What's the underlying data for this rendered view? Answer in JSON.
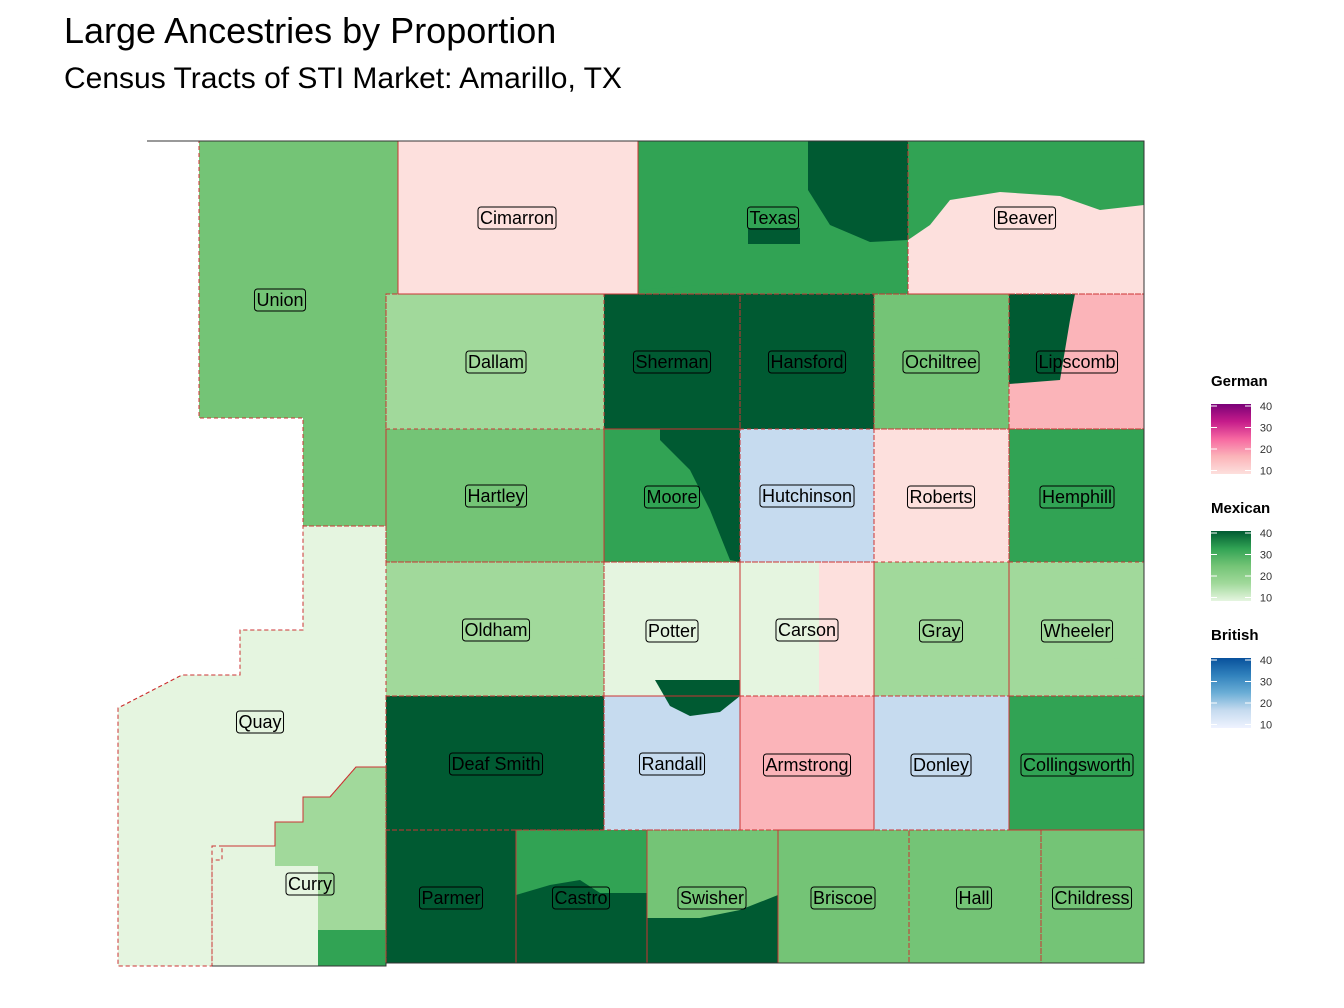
{
  "title": "Large Ancestries by Proportion",
  "subtitle": "Census Tracts of STI Market: Amarillo, TX",
  "colors": {
    "german": [
      "#fde0dd",
      "#fbb4b9",
      "#f768a1",
      "#c51b8a",
      "#7a0177"
    ],
    "mexican": [
      "#e5f5e0",
      "#a1d99b",
      "#74c476",
      "#31a354",
      "#005a32"
    ],
    "british": [
      "#eff3ff",
      "#c6dbef",
      "#6baed6",
      "#3182bd",
      "#08519c"
    ],
    "border": "#cc3333"
  },
  "legend": [
    {
      "name": "German",
      "ticks": [
        "40",
        "30",
        "20",
        "10"
      ]
    },
    {
      "name": "Mexican",
      "ticks": [
        "40",
        "30",
        "20",
        "10"
      ]
    },
    {
      "name": "British",
      "ticks": [
        "40",
        "30",
        "20",
        "10"
      ]
    }
  ],
  "counties": [
    {
      "name": "Union",
      "ancestry": "Mexican",
      "pct": 22
    },
    {
      "name": "Quay",
      "ancestry": "Mexican",
      "pct": 10
    },
    {
      "name": "Curry",
      "ancestry": "Mexican",
      "pct": 10
    },
    {
      "name": "Cimarron",
      "ancestry": "German",
      "pct": 12
    },
    {
      "name": "Texas",
      "ancestry": "Mexican",
      "pct": 30
    },
    {
      "name": "Beaver",
      "ancestry": "German",
      "pct": 12
    },
    {
      "name": "Dallam",
      "ancestry": "Mexican",
      "pct": 14
    },
    {
      "name": "Sherman",
      "ancestry": "Mexican",
      "pct": 40
    },
    {
      "name": "Hansford",
      "ancestry": "Mexican",
      "pct": 40
    },
    {
      "name": "Ochiltree",
      "ancestry": "Mexican",
      "pct": 24
    },
    {
      "name": "Lipscomb",
      "ancestry": "German",
      "pct": 15
    },
    {
      "name": "Hartley",
      "ancestry": "Mexican",
      "pct": 24
    },
    {
      "name": "Moore",
      "ancestry": "Mexican",
      "pct": 30
    },
    {
      "name": "Hutchinson",
      "ancestry": "British",
      "pct": 14
    },
    {
      "name": "Roberts",
      "ancestry": "German",
      "pct": 9
    },
    {
      "name": "Hemphill",
      "ancestry": "Mexican",
      "pct": 28
    },
    {
      "name": "Oldham",
      "ancestry": "Mexican",
      "pct": 16
    },
    {
      "name": "Potter",
      "ancestry": "Mexican",
      "pct": 12
    },
    {
      "name": "Carson",
      "ancestry": "Mexican",
      "pct": 8
    },
    {
      "name": "Gray",
      "ancestry": "Mexican",
      "pct": 14
    },
    {
      "name": "Wheeler",
      "ancestry": "Mexican",
      "pct": 20
    },
    {
      "name": "Deaf Smith",
      "ancestry": "Mexican",
      "pct": 42
    },
    {
      "name": "Randall",
      "ancestry": "British",
      "pct": 14
    },
    {
      "name": "Armstrong",
      "ancestry": "German",
      "pct": 16
    },
    {
      "name": "Donley",
      "ancestry": "British",
      "pct": 14
    },
    {
      "name": "Collingsworth",
      "ancestry": "Mexican",
      "pct": 28
    },
    {
      "name": "Parmer",
      "ancestry": "Mexican",
      "pct": 42
    },
    {
      "name": "Castro",
      "ancestry": "Mexican",
      "pct": 34
    },
    {
      "name": "Swisher",
      "ancestry": "Mexican",
      "pct": 26
    },
    {
      "name": "Briscoe",
      "ancestry": "Mexican",
      "pct": 22
    },
    {
      "name": "Hall",
      "ancestry": "Mexican",
      "pct": 24
    },
    {
      "name": "Childress",
      "ancestry": "Mexican",
      "pct": 22
    }
  ]
}
